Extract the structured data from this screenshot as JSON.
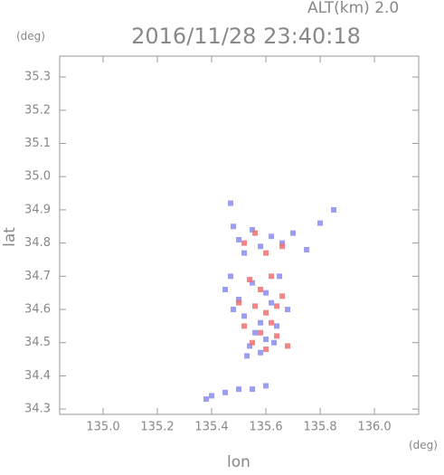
{
  "chart_data": {
    "type": "scatter",
    "title": "2016/11/28 23:40:18",
    "altitude_label": "ALT(km) 2.0",
    "y_unit": "(deg)",
    "x_unit": "(deg)",
    "xlabel": "lon",
    "ylabel": "lat",
    "xlim": [
      134.84,
      136.163
    ],
    "ylim": [
      34.284,
      35.363
    ],
    "xticks": [
      {
        "value": 135,
        "label": "135.0"
      },
      135.2,
      135.4,
      135.6,
      135.8,
      {
        "value": 136,
        "label": "136.0"
      }
    ],
    "yticks": [
      34.3,
      34.4,
      34.5,
      34.6,
      34.7,
      34.8,
      34.9,
      {
        "value": 35,
        "label": "35.0"
      },
      35.1,
      35.2,
      35.3
    ],
    "series": [
      {
        "color": "#8a8cf0",
        "x": [
          135.48,
          135.5,
          135.52,
          135.55,
          135.58,
          135.62,
          135.66,
          135.7,
          135.75,
          135.8,
          135.85,
          135.47,
          135.45,
          135.5,
          135.55,
          135.6,
          135.65,
          135.68,
          135.52,
          135.58,
          135.62,
          135.48,
          135.56,
          135.64,
          135.54,
          135.6,
          135.53,
          135.58,
          135.63,
          135.4,
          135.45,
          135.5,
          135.55,
          135.6,
          135.38,
          135.47
        ],
        "values": [
          34.85,
          34.81,
          34.77,
          34.84,
          34.79,
          34.82,
          34.8,
          34.83,
          34.78,
          34.86,
          34.9,
          34.7,
          34.66,
          34.63,
          34.68,
          34.65,
          34.7,
          34.6,
          34.58,
          34.56,
          34.62,
          34.6,
          34.53,
          34.55,
          34.49,
          34.51,
          34.46,
          34.47,
          34.5,
          34.34,
          34.35,
          34.36,
          34.36,
          34.37,
          34.33,
          34.92
        ]
      },
      {
        "color": "#f07070",
        "x": [
          135.52,
          135.56,
          135.6,
          135.66,
          135.54,
          135.58,
          135.62,
          135.66,
          135.5,
          135.56,
          135.6,
          135.64,
          135.52,
          135.58,
          135.62,
          135.55,
          135.6,
          135.64,
          135.68
        ],
        "values": [
          34.8,
          34.83,
          34.77,
          34.79,
          34.69,
          34.66,
          34.7,
          34.64,
          34.62,
          34.61,
          34.59,
          34.61,
          34.55,
          34.53,
          34.56,
          34.5,
          34.48,
          34.52,
          34.49
        ]
      }
    ]
  }
}
